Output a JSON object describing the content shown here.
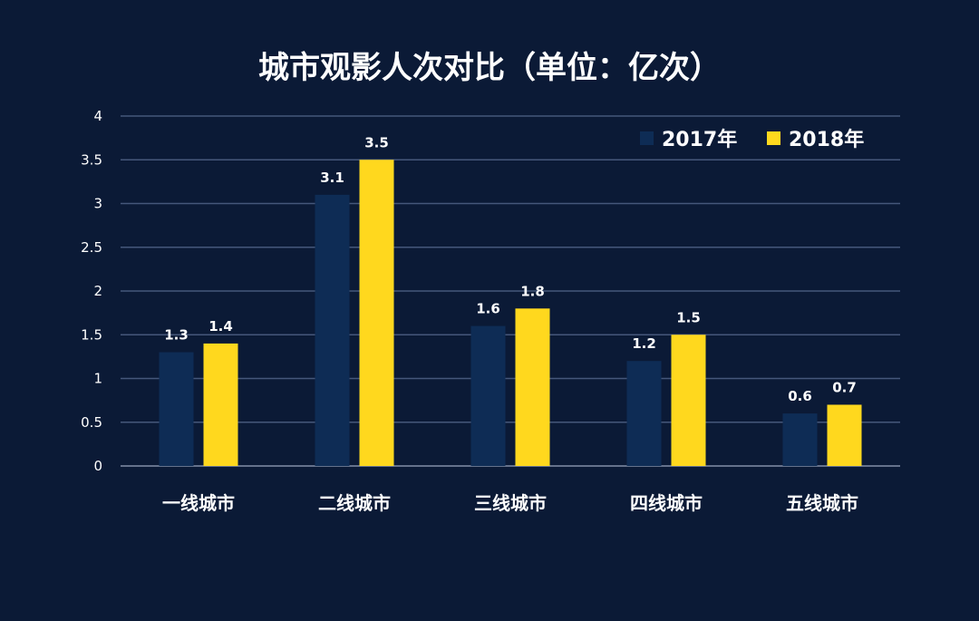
{
  "chart_data": {
    "type": "bar",
    "title": "城市观影人次对比（单位：亿次）",
    "categories": [
      "一线城市",
      "二线城市",
      "三线城市",
      "四线城市",
      "五线城市"
    ],
    "series": [
      {
        "name": "2017年",
        "color": "#0e2c55",
        "values": [
          1.3,
          3.1,
          1.6,
          1.2,
          0.6
        ]
      },
      {
        "name": "2018年",
        "color": "#ffd81e",
        "values": [
          1.4,
          3.5,
          1.8,
          1.5,
          0.7
        ]
      }
    ],
    "ylim": [
      0,
      4
    ],
    "yticks": [
      "0",
      "0.5",
      "1",
      "1.5",
      "2",
      "2.5",
      "3",
      "3.5",
      "4"
    ],
    "grid": true,
    "legend_position": "top-right",
    "background": "#0b1a36"
  }
}
